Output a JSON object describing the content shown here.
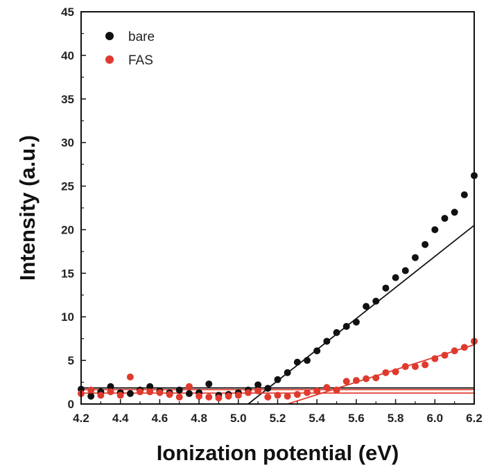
{
  "chart_data": {
    "type": "scatter",
    "title": "",
    "xlabel": "Ionization potential (eV)",
    "ylabel": "Intensity (a.u.)",
    "xlim": [
      4.2,
      6.2
    ],
    "ylim": [
      0,
      45
    ],
    "xticks": [
      "4.2",
      "4.4",
      "4.6",
      "4.8",
      "5.0",
      "5.2",
      "5.4",
      "5.6",
      "5.8",
      "6.0",
      "6.2"
    ],
    "yticks": [
      "0",
      "5",
      "10",
      "15",
      "20",
      "25",
      "30",
      "35",
      "40",
      "45"
    ],
    "grid": false,
    "legend_position": "top-left",
    "series": [
      {
        "name": "bare",
        "color": "#111111",
        "x": [
          4.2,
          4.25,
          4.3,
          4.35,
          4.4,
          4.45,
          4.5,
          4.55,
          4.6,
          4.65,
          4.7,
          4.75,
          4.8,
          4.85,
          4.9,
          4.95,
          5.0,
          5.05,
          5.1,
          5.15,
          5.2,
          5.25,
          5.3,
          5.35,
          5.4,
          5.45,
          5.5,
          5.55,
          5.6,
          5.65,
          5.7,
          5.75,
          5.8,
          5.85,
          5.9,
          5.95,
          6.0,
          6.05,
          6.1,
          6.15,
          6.2
        ],
        "y": [
          1.7,
          0.9,
          1.4,
          2.0,
          1.3,
          1.2,
          1.6,
          2.0,
          1.5,
          1.3,
          1.6,
          1.2,
          1.3,
          2.3,
          1.0,
          1.1,
          1.3,
          1.6,
          2.2,
          1.8,
          2.8,
          3.6,
          4.8,
          5.0,
          6.1,
          7.2,
          8.2,
          8.9,
          9.4,
          11.2,
          11.8,
          13.3,
          14.5,
          15.3,
          16.8,
          18.3,
          20.0,
          21.3,
          22.0,
          24.0,
          26.2
        ],
        "fit_lines": [
          {
            "x": [
              4.2,
              6.2
            ],
            "y": [
              1.85,
              1.85
            ]
          },
          {
            "x": [
              5.05,
              6.2
            ],
            "y": [
              0.0,
              20.5
            ]
          }
        ]
      },
      {
        "name": "FAS",
        "color": "#e03a2e",
        "x": [
          4.2,
          4.25,
          4.3,
          4.35,
          4.4,
          4.45,
          4.5,
          4.55,
          4.6,
          4.65,
          4.7,
          4.75,
          4.8,
          4.85,
          4.9,
          4.95,
          5.0,
          5.05,
          5.1,
          5.15,
          5.2,
          5.25,
          5.3,
          5.35,
          5.4,
          5.45,
          5.5,
          5.55,
          5.6,
          5.65,
          5.7,
          5.75,
          5.8,
          5.85,
          5.9,
          5.95,
          6.0,
          6.05,
          6.1,
          6.15,
          6.2
        ],
        "y": [
          1.2,
          1.6,
          1.0,
          1.4,
          1.0,
          3.1,
          1.4,
          1.4,
          1.3,
          1.1,
          0.8,
          2.0,
          0.9,
          0.8,
          0.7,
          0.9,
          1.0,
          1.3,
          1.5,
          0.8,
          1.0,
          0.9,
          1.1,
          1.3,
          1.5,
          1.9,
          1.6,
          2.6,
          2.7,
          2.9,
          3.0,
          3.6,
          3.7,
          4.3,
          4.3,
          4.5,
          5.2,
          5.6,
          6.1,
          6.5,
          7.2
        ],
        "fit_lines": [
          {
            "x": [
              4.2,
              6.2
            ],
            "y": [
              1.65,
              1.65
            ]
          },
          {
            "x": [
              4.2,
              6.2
            ],
            "y": [
              1.25,
              1.25
            ]
          },
          {
            "x": [
              5.25,
              6.2
            ],
            "y": [
              0.0,
              6.8
            ]
          }
        ]
      }
    ]
  }
}
